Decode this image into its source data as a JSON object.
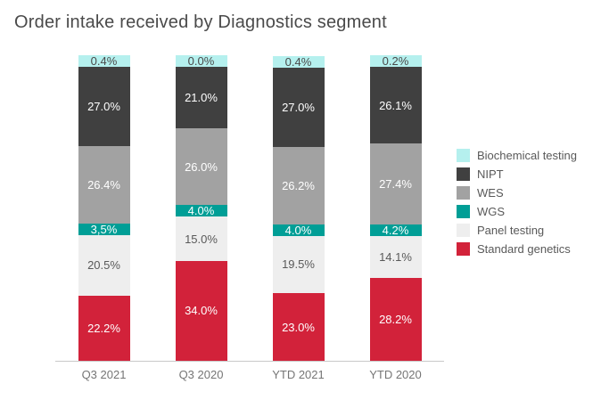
{
  "chart_data": {
    "type": "bar",
    "variant": "stacked-percent",
    "title": "Order intake received by Diagnostics segment",
    "categories": [
      "Q3 2021",
      "Q3 2020",
      "YTD 2021",
      "YTD 2020"
    ],
    "unit": "%",
    "ylim": [
      0,
      100
    ],
    "grid": false,
    "legend_position": "right",
    "series": [
      {
        "name": "Biochemical testing",
        "color": "#b5f0ee",
        "label_color": "#4a4a4a",
        "values": [
          0.4,
          0.0,
          0.4,
          0.2
        ],
        "labels": [
          "0.4%",
          "0.0%",
          "0.4%",
          "0.2%"
        ]
      },
      {
        "name": "NIPT",
        "color": "#404040",
        "label_color": "#ffffff",
        "values": [
          27.0,
          21.0,
          27.0,
          26.1
        ],
        "labels": [
          "27.0%",
          "21.0%",
          "27.0%",
          "26.1%"
        ]
      },
      {
        "name": "WES",
        "color": "#a2a2a2",
        "label_color": "#ffffff",
        "values": [
          26.4,
          26.0,
          26.2,
          27.4
        ],
        "labels": [
          "26.4%",
          "26.0%",
          "26.2%",
          "27.4%"
        ]
      },
      {
        "name": "WGS",
        "color": "#009e96",
        "label_color": "#ffffff",
        "values": [
          3.5,
          4.0,
          4.0,
          4.2
        ],
        "labels": [
          "3,5%",
          "4.0%",
          "4.0%",
          "4.2%"
        ]
      },
      {
        "name": "Panel testing",
        "color": "#eeeeee",
        "label_color": "#595959",
        "values": [
          20.5,
          15.0,
          19.5,
          14.1
        ],
        "labels": [
          "20.5%",
          "15.0%",
          "19.5%",
          "14.1%"
        ]
      },
      {
        "name": "Standard genetics",
        "color": "#d2223a",
        "label_color": "#ffffff",
        "values": [
          22.2,
          34.0,
          23.0,
          28.2
        ],
        "labels": [
          "22.2%",
          "34.0%",
          "23.0%",
          "28.2%"
        ]
      }
    ]
  }
}
